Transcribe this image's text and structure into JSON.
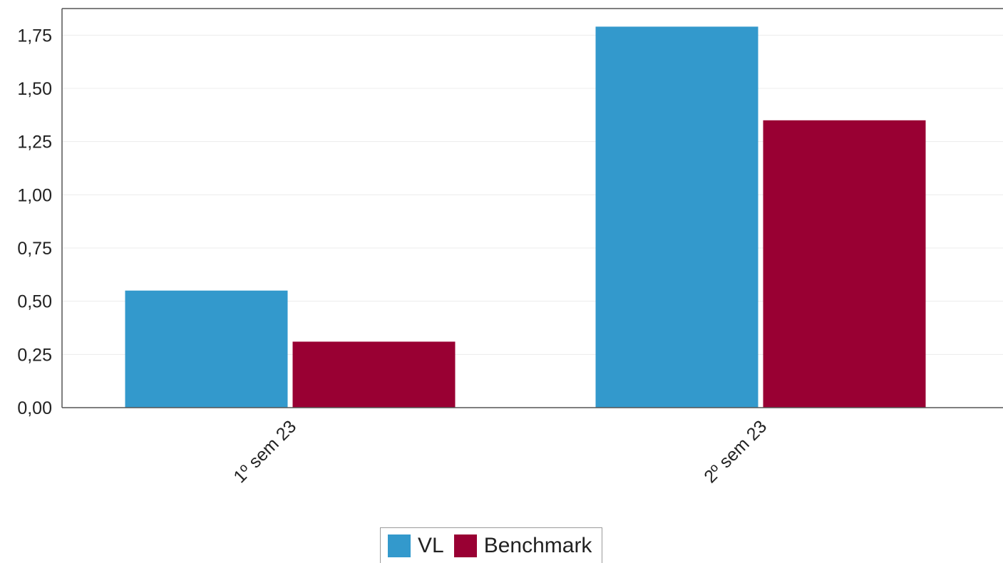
{
  "chart_data": {
    "type": "bar",
    "categories": [
      "1º sem  23",
      "2º sem  23"
    ],
    "series": [
      {
        "name": "VL",
        "color": "#3399cc",
        "values": [
          0.55,
          1.79
        ]
      },
      {
        "name": "Benchmark",
        "color": "#990033",
        "values": [
          0.31,
          1.35
        ]
      }
    ],
    "ylim": [
      0,
      1.875
    ],
    "yticks": [
      "0,00",
      "0,25",
      "0,50",
      "0,75",
      "1,00",
      "1,25",
      "1,50",
      "1,75"
    ],
    "ytick_values": [
      0,
      0.25,
      0.5,
      0.75,
      1.0,
      1.25,
      1.5,
      1.75
    ],
    "grid": true,
    "legend_position": "bottom-center"
  }
}
